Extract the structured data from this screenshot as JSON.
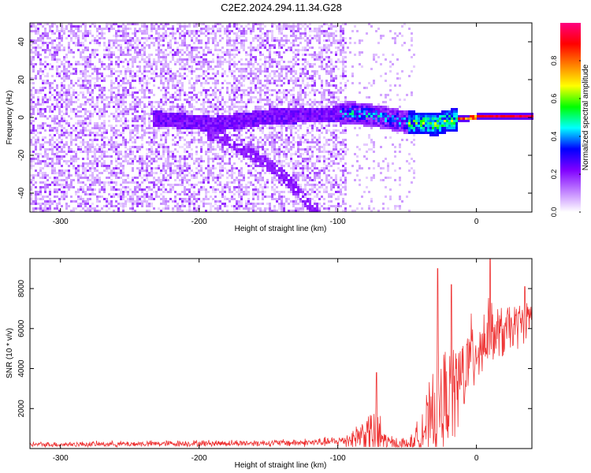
{
  "title": "C2E2.2024.294.11.34.G28",
  "chart_data": [
    {
      "type": "heatmap",
      "xlabel": "Height of straight line (km)",
      "ylabel": "Frequency (Hz)",
      "xlim": [
        -322,
        40
      ],
      "ylim": [
        -50,
        50
      ],
      "xticks": [
        -300,
        -200,
        -100,
        0
      ],
      "yticks": [
        -40,
        -20,
        0,
        20,
        40
      ],
      "colorbar": {
        "label": "Normalized spectral amplitude",
        "range": [
          0,
          1
        ],
        "ticks": [
          0,
          0.2,
          0.4,
          0.6,
          0.8
        ],
        "tick_labels": [
          "0.0",
          "0.2",
          "0.4",
          "0.6",
          "0.8"
        ],
        "colormap": [
          "#ffffff",
          "#c080ff",
          "#8000ff",
          "#0000ff",
          "#00ffff",
          "#00ff00",
          "#ffff00",
          "#ff8000",
          "#ff0000",
          "#ff0080"
        ]
      },
      "features": [
        {
          "description": "broadband noise",
          "x_range": [
            -322,
            -95
          ],
          "y_range": [
            -50,
            50
          ],
          "amplitude": 0.1
        },
        {
          "description": "signal trace",
          "points": [
            [
              -230,
              0
            ],
            [
              -190,
              -3
            ],
            [
              -150,
              1
            ],
            [
              -110,
              2
            ],
            [
              -90,
              3
            ],
            [
              -70,
              1
            ],
            [
              -50,
              -2
            ],
            [
              -30,
              -3
            ],
            [
              -20,
              -1
            ],
            [
              -10,
              0
            ],
            [
              0,
              1
            ],
            [
              40,
              1
            ]
          ]
        },
        {
          "description": "descending branch",
          "points": [
            [
              -190,
              -8
            ],
            [
              -160,
              -20
            ],
            [
              -140,
              -30
            ],
            [
              -125,
              -42
            ],
            [
              -118,
              -50
            ]
          ]
        }
      ]
    },
    {
      "type": "line",
      "xlabel": "Height of straight line (km)",
      "ylabel": "SNR (10 * v/v)",
      "xlim": [
        -322,
        40
      ],
      "ylim": [
        0,
        9500
      ],
      "xticks": [
        -300,
        -200,
        -100,
        0
      ],
      "yticks": [
        2000,
        4000,
        6000,
        8000
      ],
      "color": "#ee3333",
      "envelope": {
        "x": [
          -322,
          -250,
          -200,
          -150,
          -120,
          -100,
          -90,
          -80,
          -70,
          -65,
          -55,
          -45,
          -40,
          -30,
          -25,
          -20,
          -15,
          -10,
          -5,
          0,
          5,
          10,
          20,
          30,
          40
        ],
        "baseline": [
          200,
          230,
          260,
          280,
          300,
          350,
          500,
          800,
          600,
          300,
          200,
          250,
          900,
          1500,
          2200,
          2600,
          3000,
          3600,
          4400,
          5000,
          5400,
          5600,
          5800,
          6200,
          6700
        ],
        "amplitude": [
          150,
          180,
          200,
          200,
          250,
          300,
          600,
          1200,
          2000,
          600,
          400,
          600,
          1500,
          2800,
          3500,
          2800,
          3000,
          3000,
          2500,
          2200,
          2500,
          2000,
          1600,
          1400,
          1000
        ]
      },
      "peaks": [
        [
          -72,
          3800
        ],
        [
          -28,
          9000
        ],
        [
          -18,
          8200
        ],
        [
          10,
          9500
        ],
        [
          35,
          8100
        ]
      ]
    }
  ]
}
